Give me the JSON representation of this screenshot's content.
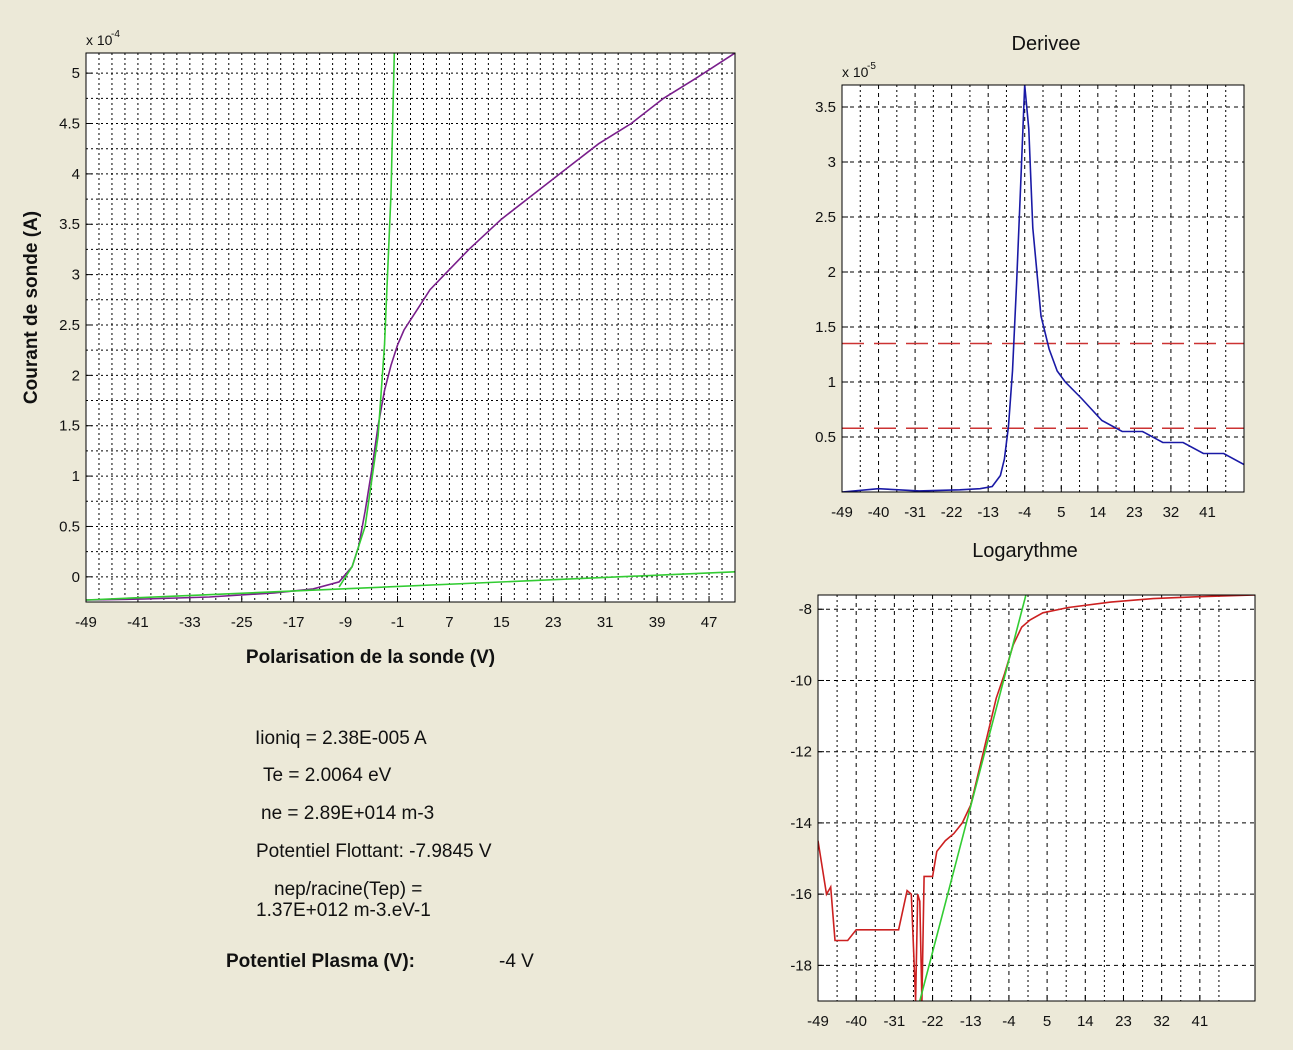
{
  "colors": {
    "background": "#ece9d8",
    "green_fit": "#33cc33",
    "blue_curve": "#1a1aa6",
    "purple_curve": "#7a1f8c",
    "red_curve": "#cc2020",
    "red_dash": "#cc3333"
  },
  "chart_data": [
    {
      "type": "line",
      "title": "",
      "xlabel": "Polarisation de la sonde (V)",
      "ylabel": "Courant de sonde (A)",
      "exponent_label": "x 10",
      "exponent": "-4",
      "xlim": [
        -49,
        51
      ],
      "ylim": [
        -0.25,
        5.2
      ],
      "x_ticks": [
        "-49",
        "-41",
        "-33",
        "-25",
        "-17",
        "-9",
        "-1",
        "7",
        "15",
        "23",
        "31",
        "39",
        "47"
      ],
      "y_ticks": [
        "0",
        "0.5",
        "1",
        "1.5",
        "2",
        "2.5",
        "3",
        "3.5",
        "4",
        "4.5",
        "5"
      ],
      "grid": true,
      "series": [
        {
          "color": "#7a1f8c",
          "x": [
            -49,
            -40,
            -30,
            -20,
            -14,
            -10,
            -8,
            -7,
            -6,
            -5,
            -4,
            -3,
            -2,
            -1,
            0,
            2,
            4,
            7,
            10,
            15,
            20,
            25,
            30,
            35,
            40,
            45,
            51
          ],
          "y": [
            -0.23,
            -0.22,
            -0.2,
            -0.16,
            -0.12,
            -0.05,
            0.1,
            0.3,
            0.65,
            1.05,
            1.5,
            1.85,
            2.1,
            2.3,
            2.45,
            2.65,
            2.85,
            3.05,
            3.25,
            3.55,
            3.8,
            4.05,
            4.3,
            4.5,
            4.75,
            4.95,
            5.2
          ]
        },
        {
          "color": "#33cc33",
          "x": [
            -49,
            51
          ],
          "y": [
            -0.23,
            0.05
          ]
        },
        {
          "color": "#33cc33",
          "x": [
            -10,
            -8,
            -6,
            -4,
            -3,
            -2,
            -1.5
          ],
          "y": [
            -0.1,
            0.1,
            0.5,
            1.4,
            2.3,
            3.8,
            5.2
          ]
        }
      ]
    },
    {
      "type": "line",
      "title": "Derivee",
      "xlabel": "",
      "ylabel": "",
      "exponent_label": "x 10",
      "exponent": "-5",
      "xlim": [
        -49,
        50
      ],
      "ylim": [
        0,
        3.7
      ],
      "x_ticks": [
        "-49",
        "-40",
        "-31",
        "-22",
        "-13",
        "-4",
        "5",
        "14",
        "23",
        "32",
        "41"
      ],
      "y_ticks": [
        "0.5",
        "1",
        "1.5",
        "2",
        "2.5",
        "3",
        "3.5"
      ],
      "hlines": [
        1.35,
        0.58
      ],
      "grid": true,
      "series": [
        {
          "color": "#1a1aa6",
          "x": [
            -49,
            -40,
            -30,
            -20,
            -15,
            -12,
            -10,
            -9,
            -8,
            -7,
            -6,
            -5,
            -4,
            -3,
            -2,
            0,
            2,
            4,
            6,
            10,
            15,
            20,
            25,
            30,
            35,
            40,
            45,
            50
          ],
          "y": [
            0.0,
            0.03,
            0.01,
            0.02,
            0.03,
            0.05,
            0.15,
            0.3,
            0.6,
            1.1,
            1.9,
            2.8,
            3.7,
            3.3,
            2.4,
            1.6,
            1.3,
            1.1,
            1.0,
            0.85,
            0.65,
            0.55,
            0.55,
            0.45,
            0.45,
            0.35,
            0.35,
            0.25
          ]
        }
      ]
    },
    {
      "type": "line",
      "title": "Logarythme",
      "xlabel": "",
      "ylabel": "",
      "xlim": [
        -49,
        54
      ],
      "ylim": [
        -19,
        -7.6
      ],
      "x_ticks": [
        "-49",
        "-40",
        "-31",
        "-22",
        "-13",
        "-4",
        "5",
        "14",
        "23",
        "32",
        "41"
      ],
      "y_ticks": [
        "-8",
        "-10",
        "-12",
        "-14",
        "-16",
        "-18"
      ],
      "grid": true,
      "series": [
        {
          "color": "#cc2020",
          "x": [
            -49,
            -47,
            -46,
            -45,
            -44,
            -42,
            -40,
            -38,
            -30,
            -28,
            -27,
            -26.5,
            -26,
            -25.5,
            -25,
            -24.5,
            -24,
            -22,
            -21,
            -19,
            -17,
            -15,
            -13,
            -11,
            -9,
            -7,
            -5,
            -3,
            -1,
            1,
            4,
            10,
            20,
            30,
            40,
            54
          ],
          "y": [
            -14.5,
            -16.0,
            -15.8,
            -17.3,
            -17.3,
            -17.3,
            -17.0,
            -17.0,
            -17.0,
            -15.9,
            -16.0,
            -17.5,
            -19,
            -16.0,
            -16.2,
            -19,
            -15.5,
            -15.5,
            -14.8,
            -14.5,
            -14.3,
            -14.0,
            -13.5,
            -12.5,
            -11.5,
            -10.5,
            -9.8,
            -9.0,
            -8.5,
            -8.3,
            -8.1,
            -7.95,
            -7.8,
            -7.7,
            -7.65,
            -7.6
          ]
        },
        {
          "color": "#33cc33",
          "x": [
            -25,
            0
          ],
          "y": [
            -19,
            -7.6
          ]
        }
      ]
    }
  ],
  "info": {
    "line1": "Iioniq = 2.38E-005 A",
    "line2": "Te = 2.0064 eV",
    "line3": "ne = 2.89E+014 m-3",
    "line4": "Potentiel Flottant: -7.9845 V",
    "line5a": "nep/racine(Tep) =",
    "line5b": "1.37E+012 m-3.eV-1",
    "plasma_label": "Potentiel Plasma (V):",
    "plasma_value": "-4 V"
  }
}
